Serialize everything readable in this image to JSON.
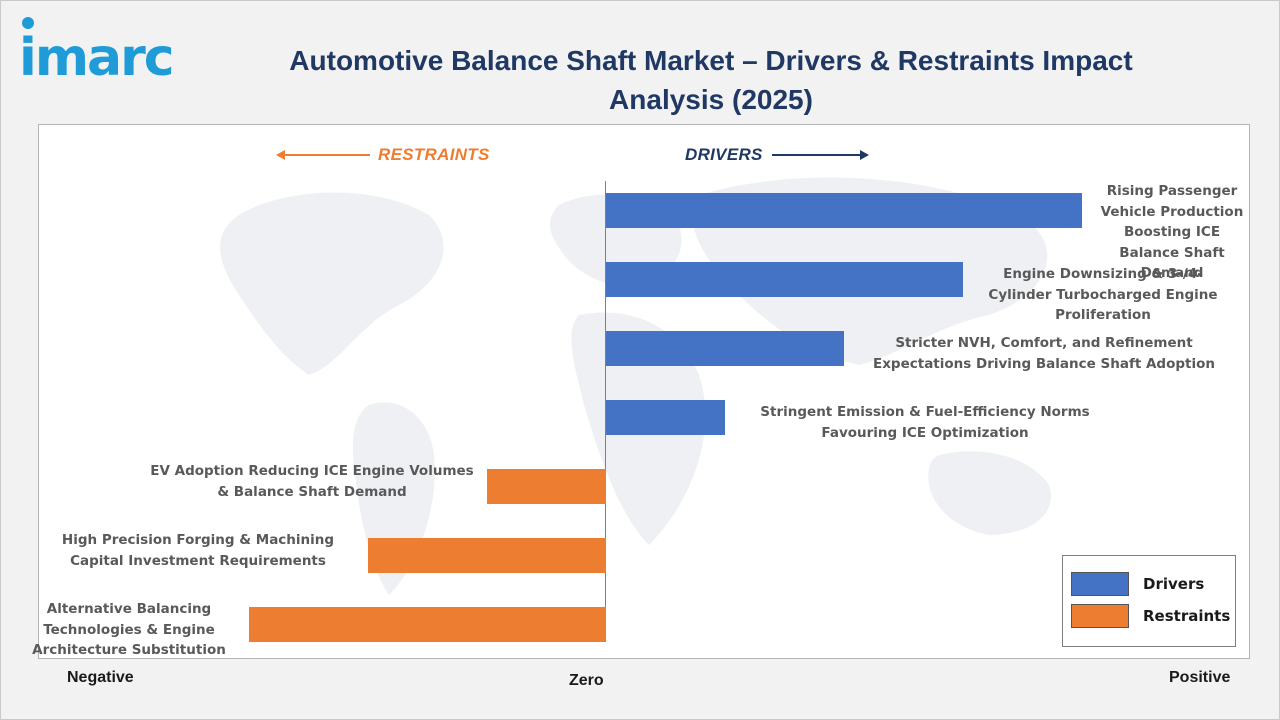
{
  "brand": {
    "logo_text": "imarc",
    "logo_color": "#1f9bd7"
  },
  "title": "Automotive Balance Shaft Market – Drivers & Restraints Impact Analysis (2025)",
  "headers": {
    "restraints": "RESTRAINTS",
    "drivers": "DRIVERS"
  },
  "axis": {
    "negative": "Negative",
    "zero": "Zero",
    "positive": "Positive"
  },
  "legend": {
    "drivers": "Drivers",
    "restraints": "Restraints"
  },
  "colors": {
    "drivers": "#4472c4",
    "restraints": "#ed7d31",
    "title": "#1f3864"
  },
  "chart_data": {
    "type": "bar",
    "orientation": "horizontal",
    "title": "Automotive Balance Shaft Market – Drivers & Restraints Impact Analysis (2025)",
    "xlim": [
      -5,
      5
    ],
    "legend_position": "bottom-right",
    "grid": false,
    "series": [
      {
        "name": "Drivers",
        "items": [
          {
            "label": "Rising Passenger Vehicle Production Boosting ICE Balance Shaft Demand",
            "value": 4
          },
          {
            "label": "Engine Downsizing & 3-/4-Cylinder Turbocharged Engine Proliferation",
            "value": 3
          },
          {
            "label": "Stricter NVH, Comfort, and Refinement Expectations Driving Balance Shaft Adoption",
            "value": 2
          },
          {
            "label": "Stringent Emission & Fuel-Efficiency Norms Favouring ICE Optimization",
            "value": 1
          }
        ]
      },
      {
        "name": "Restraints",
        "items": [
          {
            "label": "EV Adoption Reducing ICE Engine Volumes & Balance Shaft Demand",
            "value": -1
          },
          {
            "label": "High Precision Forging & Machining Capital Investment Requirements",
            "value": -2
          },
          {
            "label": "Alternative Balancing Technologies & Engine Architecture Substitution",
            "value": -3
          }
        ]
      }
    ]
  }
}
